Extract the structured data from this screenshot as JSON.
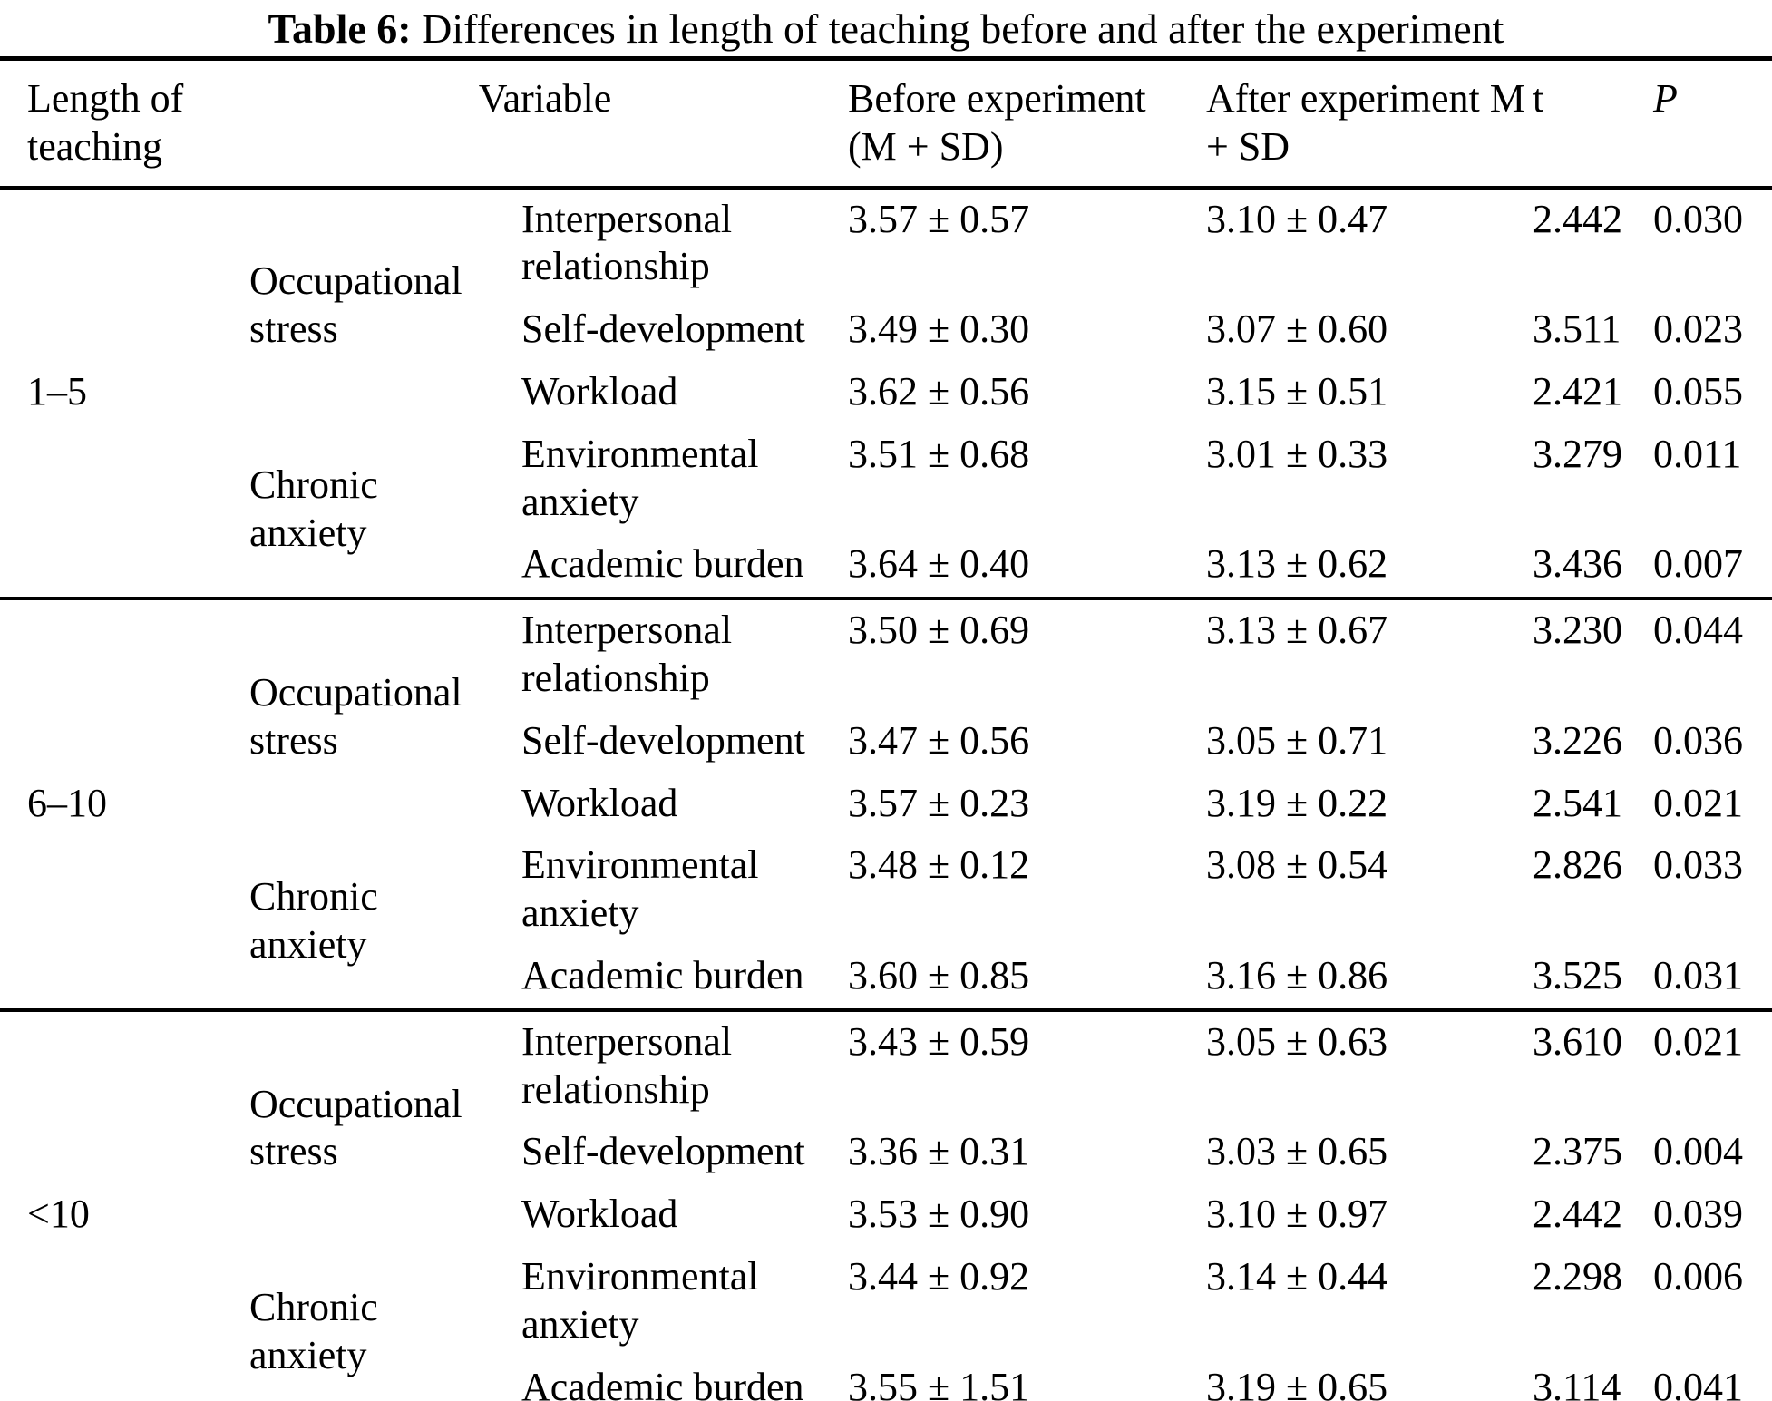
{
  "title": {
    "label": "Table 6:",
    "text": " Differences in length of teaching before and after the experiment"
  },
  "header": {
    "length": "Length of teaching",
    "variable": "Variable",
    "before": "Before experiment (M + SD)",
    "after": "After experiment M + SD",
    "t": "t",
    "p": "P"
  },
  "groups": [
    {
      "length": "1–5",
      "occupational_label": "Occupational stress",
      "chronic_label": "Chronic anxiety",
      "rows": [
        {
          "variable": "Interpersonal relationship",
          "before": "3.57 ± 0.57",
          "after": "3.10 ± 0.47",
          "t": "2.442",
          "p": "0.030"
        },
        {
          "variable": "Self-development",
          "before": "3.49 ± 0.30",
          "after": "3.07 ± 0.60",
          "t": "3.511",
          "p": "0.023"
        },
        {
          "variable": "Workload",
          "before": "3.62 ± 0.56",
          "after": "3.15 ± 0.51",
          "t": "2.421",
          "p": "0.055"
        },
        {
          "variable": "Environmental anxiety",
          "before": "3.51 ± 0.68",
          "after": "3.01 ± 0.33",
          "t": "3.279",
          "p": "0.011"
        },
        {
          "variable": "Academic burden",
          "before": "3.64 ± 0.40",
          "after": "3.13 ± 0.62",
          "t": "3.436",
          "p": "0.007"
        }
      ]
    },
    {
      "length": "6–10",
      "occupational_label": "Occupational stress",
      "chronic_label": "Chronic anxiety",
      "rows": [
        {
          "variable": "Interpersonal relationship",
          "before": "3.50 ± 0.69",
          "after": "3.13 ± 0.67",
          "t": "3.230",
          "p": "0.044"
        },
        {
          "variable": "Self-development",
          "before": "3.47 ± 0.56",
          "after": "3.05 ± 0.71",
          "t": "3.226",
          "p": "0.036"
        },
        {
          "variable": "Workload",
          "before": "3.57 ± 0.23",
          "after": "3.19 ± 0.22",
          "t": "2.541",
          "p": "0.021"
        },
        {
          "variable": "Environmental anxiety",
          "before": "3.48 ± 0.12",
          "after": "3.08 ± 0.54",
          "t": "2.826",
          "p": "0.033"
        },
        {
          "variable": "Academic burden",
          "before": "3.60 ± 0.85",
          "after": "3.16 ± 0.86",
          "t": "3.525",
          "p": "0.031"
        }
      ]
    },
    {
      "length": "<10",
      "occupational_label": "Occupational stress",
      "chronic_label": "Chronic anxiety",
      "rows": [
        {
          "variable": "Interpersonal relationship",
          "before": "3.43 ± 0.59",
          "after": "3.05 ± 0.63",
          "t": "3.610",
          "p": "0.021"
        },
        {
          "variable": "Self-development",
          "before": "3.36 ± 0.31",
          "after": "3.03 ± 0.65",
          "t": "2.375",
          "p": "0.004"
        },
        {
          "variable": "Workload",
          "before": "3.53 ± 0.90",
          "after": "3.10 ± 0.97",
          "t": "2.442",
          "p": "0.039"
        },
        {
          "variable": "Environmental anxiety",
          "before": "3.44 ± 0.92",
          "after": "3.14 ± 0.44",
          "t": "2.298",
          "p": "0.006"
        },
        {
          "variable": "Academic burden",
          "before": "3.55 ± 1.51",
          "after": "3.19 ± 0.65",
          "t": "3.114",
          "p": "0.041"
        }
      ]
    }
  ]
}
